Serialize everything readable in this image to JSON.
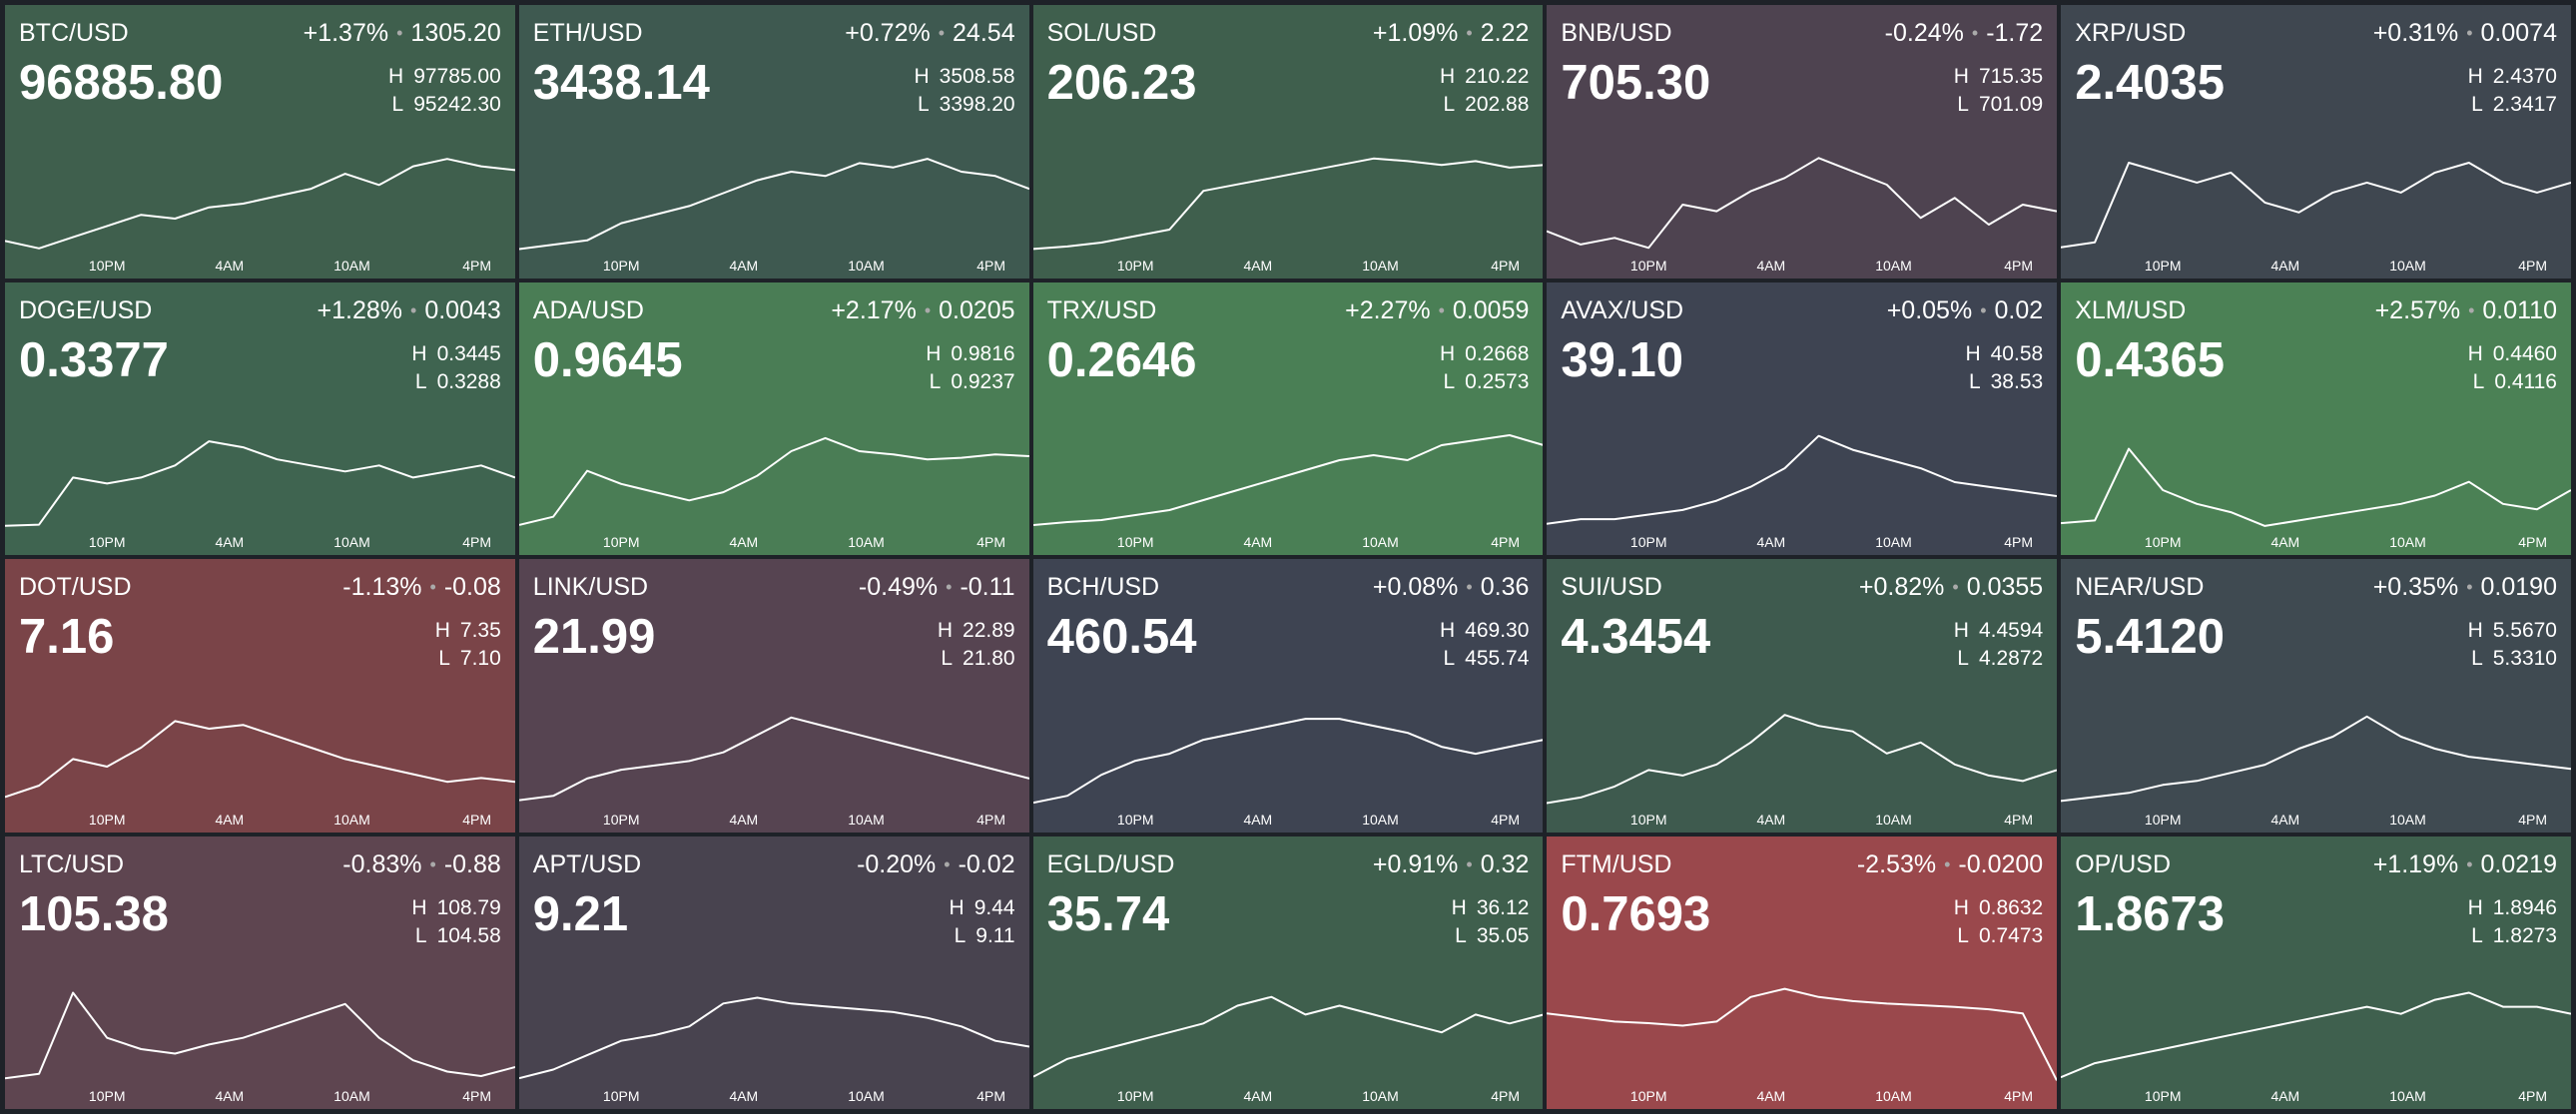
{
  "high_label": "H",
  "low_label": "L",
  "dot": "•",
  "time_labels": [
    "10PM",
    "4AM",
    "10AM",
    "4PM"
  ],
  "tiles": [
    {
      "pair": "BTC/USD",
      "change_pct": "+1.37%",
      "change": "1305.20",
      "price": "96885.80",
      "high": "97785.00",
      "low": "95242.30",
      "color": "#3f5f4d",
      "spark": [
        95500,
        95300,
        95600,
        95900,
        96200,
        96100,
        96400,
        96500,
        96700,
        96900,
        97300,
        97000,
        97500,
        97700,
        97500,
        97400
      ]
    },
    {
      "pair": "ETH/USD",
      "change_pct": "+0.72%",
      "change": "24.54",
      "price": "3438.14",
      "high": "3508.58",
      "low": "3398.20",
      "color": "#3e5950",
      "spark": [
        3400,
        3405,
        3410,
        3430,
        3440,
        3450,
        3465,
        3480,
        3490,
        3485,
        3500,
        3495,
        3505,
        3490,
        3485,
        3470
      ]
    },
    {
      "pair": "SOL/USD",
      "change_pct": "+1.09%",
      "change": "2.22",
      "price": "206.23",
      "high": "210.22",
      "low": "202.88",
      "color": "#3f5f4d",
      "spark": [
        203,
        203.2,
        203.5,
        204,
        204.5,
        207.5,
        208,
        208.5,
        209,
        209.5,
        210,
        209.8,
        209.5,
        209.8,
        209.3,
        209.5
      ]
    },
    {
      "pair": "BNB/USD",
      "change_pct": "-0.24%",
      "change": "-1.72",
      "price": "705.30",
      "high": "715.35",
      "low": "701.09",
      "color": "#4e4350",
      "spark": [
        704,
        702,
        703,
        701.5,
        708,
        707,
        710,
        712,
        715,
        713,
        711,
        706,
        709,
        705,
        708,
        707
      ]
    },
    {
      "pair": "XRP/USD",
      "change_pct": "+0.31%",
      "change": "0.0074",
      "price": "2.4035",
      "high": "2.4370",
      "low": "2.3417",
      "color": "#3f4750",
      "spark": [
        2.345,
        2.35,
        2.43,
        2.42,
        2.41,
        2.42,
        2.39,
        2.38,
        2.4,
        2.41,
        2.4,
        2.42,
        2.43,
        2.41,
        2.4,
        2.41
      ]
    },
    {
      "pair": "DOGE/USD",
      "change_pct": "+1.28%",
      "change": "0.0043",
      "price": "0.3377",
      "high": "0.3445",
      "low": "0.3288",
      "color": "#3f6450",
      "spark": [
        0.329,
        0.3292,
        0.337,
        0.336,
        0.337,
        0.339,
        0.343,
        0.342,
        0.34,
        0.339,
        0.338,
        0.339,
        0.337,
        0.338,
        0.339,
        0.337
      ]
    },
    {
      "pair": "ADA/USD",
      "change_pct": "+2.17%",
      "change": "0.0205",
      "price": "0.9645",
      "high": "0.9816",
      "low": "0.9237",
      "color": "#4a7d55",
      "spark": [
        0.925,
        0.93,
        0.958,
        0.95,
        0.945,
        0.94,
        0.945,
        0.955,
        0.97,
        0.978,
        0.97,
        0.968,
        0.965,
        0.966,
        0.968,
        0.967
      ]
    },
    {
      "pair": "TRX/USD",
      "change_pct": "+2.27%",
      "change": "0.0059",
      "price": "0.2646",
      "high": "0.2668",
      "low": "0.2573",
      "color": "#4a7f55",
      "spark": [
        0.2575,
        0.2578,
        0.258,
        0.2585,
        0.259,
        0.26,
        0.261,
        0.262,
        0.263,
        0.264,
        0.2645,
        0.264,
        0.2655,
        0.266,
        0.2665,
        0.2655
      ]
    },
    {
      "pair": "AVAX/USD",
      "change_pct": "+0.05%",
      "change": "0.02",
      "price": "39.10",
      "high": "40.58",
      "low": "38.53",
      "color": "#3e4452",
      "spark": [
        38.6,
        38.7,
        38.7,
        38.8,
        38.9,
        39.1,
        39.4,
        39.8,
        40.5,
        40.2,
        40.0,
        39.8,
        39.5,
        39.4,
        39.3,
        39.2
      ]
    },
    {
      "pair": "XLM/USD",
      "change_pct": "+2.57%",
      "change": "0.0110",
      "price": "0.4365",
      "high": "0.4460",
      "low": "0.4116",
      "color": "#4b8155",
      "spark": [
        0.413,
        0.414,
        0.44,
        0.425,
        0.42,
        0.417,
        0.412,
        0.414,
        0.416,
        0.418,
        0.42,
        0.423,
        0.428,
        0.42,
        0.418,
        0.425
      ]
    },
    {
      "pair": "DOT/USD",
      "change_pct": "-1.13%",
      "change": "-0.08",
      "price": "7.16",
      "high": "7.35",
      "low": "7.10",
      "color": "#7a4448",
      "spark": [
        7.12,
        7.15,
        7.22,
        7.2,
        7.25,
        7.32,
        7.3,
        7.31,
        7.28,
        7.25,
        7.22,
        7.2,
        7.18,
        7.16,
        7.17,
        7.16
      ]
    },
    {
      "pair": "LINK/USD",
      "change_pct": "-0.49%",
      "change": "-0.11",
      "price": "21.99",
      "high": "22.89",
      "low": "21.80",
      "color": "#564451",
      "spark": [
        21.85,
        21.9,
        22.1,
        22.2,
        22.25,
        22.3,
        22.4,
        22.6,
        22.8,
        22.7,
        22.6,
        22.5,
        22.4,
        22.3,
        22.2,
        22.1
      ]
    },
    {
      "pair": "BCH/USD",
      "change_pct": "+0.08%",
      "change": "0.36",
      "price": "460.54",
      "high": "469.30",
      "low": "455.74",
      "color": "#3e4452",
      "spark": [
        456,
        457,
        460,
        462,
        463,
        465,
        466,
        467,
        468,
        468,
        467,
        466,
        464,
        463,
        464,
        465
      ]
    },
    {
      "pair": "SUI/USD",
      "change_pct": "+0.82%",
      "change": "0.0355",
      "price": "4.3454",
      "high": "4.4594",
      "low": "4.2872",
      "color": "#3e5a4e",
      "spark": [
        4.29,
        4.3,
        4.32,
        4.35,
        4.34,
        4.36,
        4.4,
        4.45,
        4.43,
        4.42,
        4.38,
        4.4,
        4.36,
        4.34,
        4.33,
        4.35
      ]
    },
    {
      "pair": "NEAR/USD",
      "change_pct": "+0.35%",
      "change": "0.0190",
      "price": "5.4120",
      "high": "5.5670",
      "low": "5.3310",
      "color": "#3f4a51",
      "spark": [
        5.34,
        5.35,
        5.36,
        5.38,
        5.39,
        5.41,
        5.43,
        5.47,
        5.5,
        5.55,
        5.5,
        5.47,
        5.45,
        5.44,
        5.43,
        5.42
      ]
    },
    {
      "pair": "LTC/USD",
      "change_pct": "-0.83%",
      "change": "-0.88",
      "price": "105.38",
      "high": "108.79",
      "low": "104.58",
      "color": "#5e4550",
      "spark": [
        104.7,
        104.9,
        108.5,
        106.5,
        106,
        105.8,
        106.2,
        106.5,
        107,
        107.5,
        108,
        106.5,
        105.5,
        105,
        104.8,
        105.2
      ]
    },
    {
      "pair": "APT/USD",
      "change_pct": "-0.20%",
      "change": "-0.02",
      "price": "9.21",
      "high": "9.44",
      "low": "9.11",
      "color": "#48434f",
      "spark": [
        9.12,
        9.15,
        9.2,
        9.25,
        9.27,
        9.3,
        9.38,
        9.4,
        9.38,
        9.37,
        9.36,
        9.35,
        9.33,
        9.3,
        9.25,
        9.23
      ]
    },
    {
      "pair": "EGLD/USD",
      "change_pct": "+0.91%",
      "change": "0.32",
      "price": "35.74",
      "high": "36.12",
      "low": "35.05",
      "color": "#3f5f4d",
      "spark": [
        35.1,
        35.3,
        35.4,
        35.5,
        35.6,
        35.7,
        35.9,
        36.0,
        35.8,
        35.9,
        35.8,
        35.7,
        35.6,
        35.8,
        35.7,
        35.8
      ]
    },
    {
      "pair": "FTM/USD",
      "change_pct": "-2.53%",
      "change": "-0.0200",
      "price": "0.7693",
      "high": "0.8632",
      "low": "0.7473",
      "color": "#9a484c",
      "spark": [
        0.83,
        0.825,
        0.82,
        0.818,
        0.815,
        0.82,
        0.85,
        0.86,
        0.85,
        0.845,
        0.842,
        0.84,
        0.838,
        0.835,
        0.83,
        0.748
      ]
    },
    {
      "pair": "OP/USD",
      "change_pct": "+1.19%",
      "change": "0.0219",
      "price": "1.8673",
      "high": "1.8946",
      "low": "1.8273",
      "color": "#3f604e",
      "spark": [
        1.83,
        1.84,
        1.845,
        1.85,
        1.855,
        1.86,
        1.865,
        1.87,
        1.875,
        1.88,
        1.875,
        1.885,
        1.89,
        1.88,
        1.88,
        1.875
      ]
    }
  ]
}
